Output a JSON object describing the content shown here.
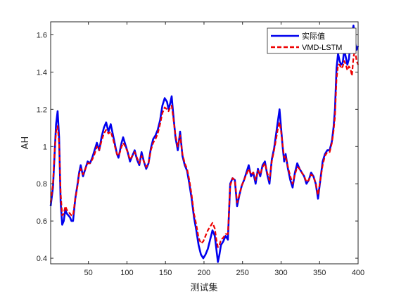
{
  "chart_data": {
    "type": "line",
    "title": "",
    "xlabel": "测试集",
    "ylabel": "AH",
    "xlim": [
      1,
      400
    ],
    "ylim": [
      0.37,
      1.67
    ],
    "xticks": [
      50,
      100,
      150,
      200,
      250,
      300,
      350,
      400
    ],
    "yticks": [
      0.4,
      0.6,
      0.8,
      1.0,
      1.2,
      1.4,
      1.6
    ],
    "ytick_labels": [
      "0.4",
      "0.6",
      "0.8",
      "1",
      "1.2",
      "1.4",
      "1.6"
    ],
    "grid": false,
    "legend_position": "top-right",
    "series": [
      {
        "name": "实际值",
        "color": "#0000ee",
        "style": "solid",
        "x": [
          1,
          4,
          6,
          8,
          10,
          12,
          14,
          16,
          18,
          20,
          22,
          24,
          26,
          28,
          30,
          33,
          36,
          38,
          40,
          43,
          46,
          49,
          52,
          55,
          58,
          61,
          64,
          67,
          70,
          73,
          76,
          79,
          82,
          85,
          87,
          89,
          91,
          93,
          95,
          98,
          101,
          104,
          107,
          110,
          113,
          116,
          119,
          122,
          125,
          128,
          131,
          134,
          137,
          140,
          143,
          146,
          149,
          152,
          154,
          156,
          158,
          160,
          163,
          166,
          169,
          172,
          175,
          178,
          181,
          184,
          187,
          190,
          193,
          196,
          199,
          202,
          205,
          208,
          211,
          214,
          216,
          218,
          220,
          222,
          225,
          228,
          231,
          234,
          237,
          240,
          243,
          246,
          249,
          252,
          255,
          258,
          261,
          264,
          267,
          270,
          273,
          276,
          279,
          282,
          285,
          288,
          291,
          294,
          296,
          298,
          300,
          302,
          304,
          306,
          309,
          312,
          315,
          318,
          321,
          324,
          327,
          330,
          333,
          336,
          339,
          342,
          345,
          348,
          351,
          354,
          357,
          360,
          363,
          366,
          368,
          370,
          372,
          374,
          376,
          378,
          380,
          382,
          384,
          386,
          388,
          390,
          392,
          394,
          396,
          398,
          400
        ],
        "values": [
          0.68,
          0.78,
          0.95,
          1.12,
          1.19,
          1.05,
          0.7,
          0.58,
          0.6,
          0.66,
          0.64,
          0.63,
          0.62,
          0.6,
          0.6,
          0.72,
          0.8,
          0.86,
          0.9,
          0.84,
          0.88,
          0.92,
          0.91,
          0.94,
          0.98,
          1.02,
          0.98,
          1.05,
          1.1,
          1.13,
          1.08,
          1.12,
          1.06,
          1.0,
          0.96,
          0.94,
          0.98,
          1.02,
          1.05,
          1.01,
          0.97,
          0.92,
          0.95,
          0.98,
          0.93,
          0.9,
          0.97,
          0.92,
          0.88,
          0.91,
          0.99,
          1.04,
          1.06,
          1.09,
          1.14,
          1.22,
          1.26,
          1.24,
          1.2,
          1.23,
          1.27,
          1.18,
          1.05,
          0.98,
          1.08,
          0.95,
          0.9,
          0.87,
          0.8,
          0.72,
          0.62,
          0.55,
          0.47,
          0.42,
          0.4,
          0.42,
          0.45,
          0.5,
          0.55,
          0.52,
          0.45,
          0.38,
          0.42,
          0.47,
          0.49,
          0.52,
          0.5,
          0.8,
          0.83,
          0.82,
          0.68,
          0.74,
          0.79,
          0.82,
          0.86,
          0.9,
          0.84,
          0.86,
          0.8,
          0.88,
          0.84,
          0.9,
          0.92,
          0.85,
          0.8,
          0.93,
          0.99,
          1.08,
          1.14,
          1.2,
          1.1,
          1.0,
          0.92,
          0.96,
          0.88,
          0.82,
          0.78,
          0.86,
          0.91,
          0.88,
          0.86,
          0.84,
          0.8,
          0.82,
          0.86,
          0.84,
          0.8,
          0.72,
          0.82,
          0.92,
          0.96,
          0.98,
          0.98,
          1.03,
          1.1,
          1.2,
          1.42,
          1.5,
          1.46,
          1.44,
          1.45,
          1.52,
          1.48,
          1.44,
          1.47,
          1.55,
          1.6,
          1.65,
          1.56,
          1.52,
          1.54
        ]
      },
      {
        "name": "VMD-LSTM",
        "color": "#ee0000",
        "style": "dashed",
        "x": [
          1,
          4,
          6,
          8,
          10,
          12,
          14,
          16,
          18,
          20,
          22,
          24,
          26,
          28,
          30,
          33,
          36,
          38,
          40,
          43,
          46,
          49,
          52,
          55,
          58,
          61,
          64,
          67,
          70,
          73,
          76,
          79,
          82,
          85,
          87,
          89,
          91,
          93,
          95,
          98,
          101,
          104,
          107,
          110,
          113,
          116,
          119,
          122,
          125,
          128,
          131,
          134,
          137,
          140,
          143,
          146,
          149,
          152,
          154,
          156,
          158,
          160,
          163,
          166,
          169,
          172,
          175,
          178,
          181,
          184,
          187,
          190,
          193,
          196,
          199,
          202,
          205,
          208,
          211,
          214,
          216,
          218,
          220,
          222,
          225,
          228,
          231,
          234,
          237,
          240,
          243,
          246,
          249,
          252,
          255,
          258,
          261,
          264,
          267,
          270,
          273,
          276,
          279,
          282,
          285,
          288,
          291,
          294,
          296,
          298,
          300,
          302,
          304,
          306,
          309,
          312,
          315,
          318,
          321,
          324,
          327,
          330,
          333,
          336,
          339,
          342,
          345,
          348,
          351,
          354,
          357,
          360,
          363,
          366,
          368,
          370,
          372,
          374,
          376,
          378,
          380,
          382,
          384,
          386,
          388,
          390,
          392,
          394,
          396,
          398,
          400
        ],
        "values": [
          0.7,
          0.8,
          0.97,
          1.08,
          1.11,
          1.02,
          0.75,
          0.63,
          0.64,
          0.68,
          0.66,
          0.65,
          0.64,
          0.63,
          0.63,
          0.72,
          0.79,
          0.85,
          0.88,
          0.85,
          0.88,
          0.91,
          0.91,
          0.93,
          0.96,
          1.0,
          0.98,
          1.03,
          1.07,
          1.09,
          1.07,
          1.08,
          1.04,
          0.99,
          0.96,
          0.95,
          0.97,
          1.0,
          1.02,
          1.0,
          0.97,
          0.93,
          0.95,
          0.97,
          0.94,
          0.91,
          0.95,
          0.92,
          0.89,
          0.91,
          0.98,
          1.02,
          1.04,
          1.07,
          1.12,
          1.18,
          1.21,
          1.2,
          1.19,
          1.21,
          1.22,
          1.16,
          1.06,
          1.0,
          1.06,
          0.96,
          0.91,
          0.88,
          0.82,
          0.74,
          0.64,
          0.58,
          0.51,
          0.48,
          0.49,
          0.52,
          0.55,
          0.57,
          0.59,
          0.56,
          0.5,
          0.46,
          0.47,
          0.5,
          0.51,
          0.53,
          0.53,
          0.79,
          0.83,
          0.82,
          0.7,
          0.74,
          0.79,
          0.82,
          0.85,
          0.88,
          0.85,
          0.86,
          0.82,
          0.87,
          0.85,
          0.89,
          0.91,
          0.86,
          0.82,
          0.92,
          0.98,
          1.05,
          1.1,
          1.13,
          1.08,
          1.01,
          0.94,
          0.95,
          0.89,
          0.84,
          0.8,
          0.85,
          0.89,
          0.88,
          0.86,
          0.84,
          0.81,
          0.82,
          0.85,
          0.84,
          0.8,
          0.74,
          0.82,
          0.9,
          0.95,
          0.97,
          0.97,
          1.02,
          1.08,
          1.16,
          1.36,
          1.44,
          1.44,
          1.42,
          1.43,
          1.46,
          1.44,
          1.41,
          1.43,
          1.42,
          1.38,
          1.48,
          1.52,
          1.46,
          1.44
        ]
      }
    ]
  }
}
